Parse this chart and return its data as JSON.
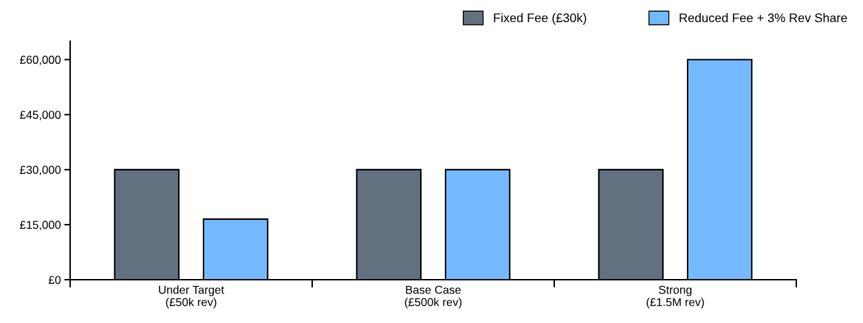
{
  "chart_data": {
    "type": "bar",
    "categories": [
      "Under Target\n(£50k rev)",
      "Base Case\n(£500k rev)",
      "Strong\n(£1.5M rev)"
    ],
    "series": [
      {
        "name": "Fixed Fee (£30k)",
        "color": "#627080",
        "values": [
          30000,
          30000,
          30000
        ]
      },
      {
        "name": "Reduced Fee + 3% Rev Share",
        "color": "#74b9ff",
        "values": [
          16500,
          30000,
          60000
        ]
      }
    ],
    "ylim": [
      0,
      65000
    ],
    "yticks": [
      {
        "value": 0,
        "label": "£0"
      },
      {
        "value": 15000,
        "label": "£15,000"
      },
      {
        "value": 30000,
        "label": "£30,000"
      },
      {
        "value": 45000,
        "label": "£45,000"
      },
      {
        "value": 60000,
        "label": "£60,000"
      }
    ],
    "grid": false,
    "legend": "top right"
  }
}
